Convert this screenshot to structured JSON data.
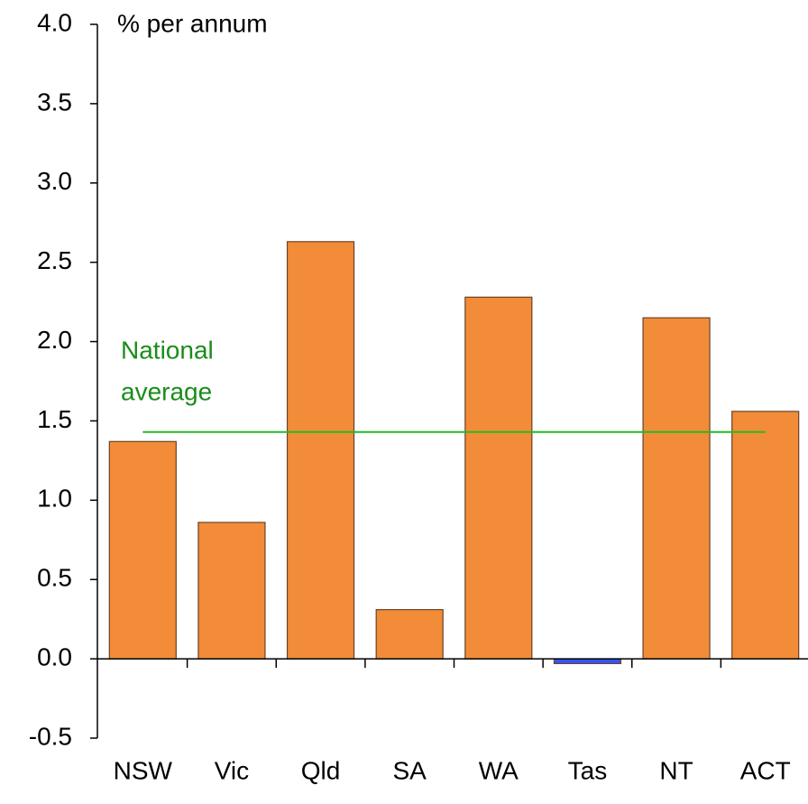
{
  "chart_data": {
    "type": "bar",
    "y_label": "% per annum",
    "categories": [
      "NSW",
      "Vic",
      "Qld",
      "SA",
      "WA",
      "Tas",
      "NT",
      "ACT"
    ],
    "values": [
      1.37,
      0.86,
      2.63,
      0.31,
      2.28,
      -0.03,
      2.15,
      1.56
    ],
    "colors": [
      "#f28c38",
      "#f28c38",
      "#f28c38",
      "#f28c38",
      "#f28c38",
      "#3355ff",
      "#f28c38",
      "#f28c38"
    ],
    "ylim": [
      -0.5,
      4.0
    ],
    "yticks": [
      {
        "value": -0.5,
        "label": "-0.5"
      },
      {
        "value": 0,
        "label": "0.0"
      },
      {
        "value": 0.5,
        "label": "0.5"
      },
      {
        "value": 1,
        "label": "1.0"
      },
      {
        "value": 1.5,
        "label": "1.5"
      },
      {
        "value": 2,
        "label": "2.0"
      },
      {
        "value": 2.5,
        "label": "2.5"
      },
      {
        "value": 3,
        "label": "3.0"
      },
      {
        "value": 3.5,
        "label": "3.5"
      },
      {
        "value": 4,
        "label": "4.0"
      }
    ],
    "reference_line": {
      "label": [
        "National",
        "average"
      ],
      "value": 1.43,
      "color": "#22bb22",
      "label_color": "#1a8c1a"
    },
    "grid": false
  }
}
